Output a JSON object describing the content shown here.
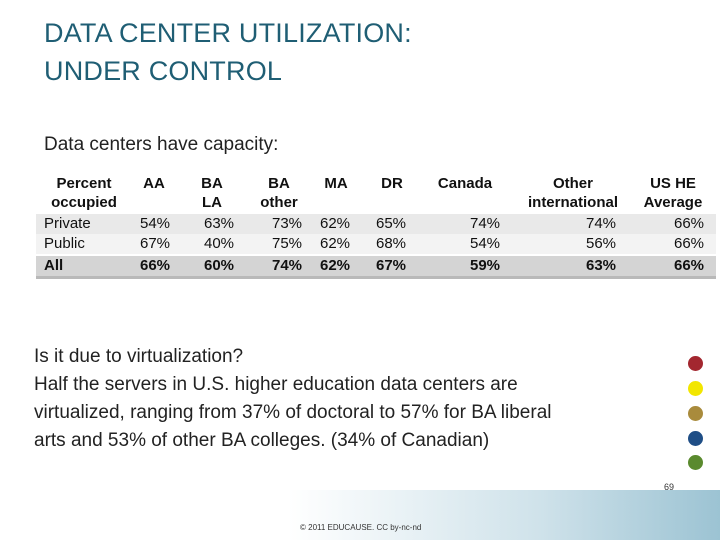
{
  "title": {
    "line1": "DATA CENTER UTILIZATION:",
    "line2": "UNDER CONTROL"
  },
  "subtitle": "Data centers have capacity:",
  "table": {
    "headers": [
      "Percent\noccupied",
      "AA",
      "BA\nLA",
      "BA\nother",
      "MA",
      "DR",
      "Canada",
      "Other\ninternational",
      "US HE\nAverage"
    ],
    "rows": [
      {
        "label": "Private",
        "values": [
          "54%",
          "63%",
          "73%",
          "62%",
          "65%",
          "74%",
          "74%",
          "66%"
        ]
      },
      {
        "label": "Public",
        "values": [
          "67%",
          "40%",
          "75%",
          "62%",
          "68%",
          "54%",
          "56%",
          "66%"
        ]
      },
      {
        "label": "All",
        "values": [
          "66%",
          "60%",
          "74%",
          "62%",
          "67%",
          "59%",
          "63%",
          "66%"
        ]
      }
    ]
  },
  "body": {
    "line1": "Is it due to virtualization?",
    "line2": "Half the servers in U.S. higher education data centers are",
    "line3": "virtualized, ranging from 37% of doctoral to 57% for BA liberal",
    "line4": "arts and 53% of other BA colleges. (34% of Canadian)"
  },
  "decor_dots": [
    {
      "name": "red-dot",
      "color": "#a3272f"
    },
    {
      "name": "yellow-dot",
      "color": "#f2e600"
    },
    {
      "name": "tan-dot",
      "color": "#a98b3c"
    },
    {
      "name": "blue-dot",
      "color": "#1f4e86"
    },
    {
      "name": "green-dot",
      "color": "#5a8a2e"
    }
  ],
  "footer": {
    "copyright": "© 2011 EDUCAUSE. CC by-nc-nd",
    "page_number": "69"
  }
}
